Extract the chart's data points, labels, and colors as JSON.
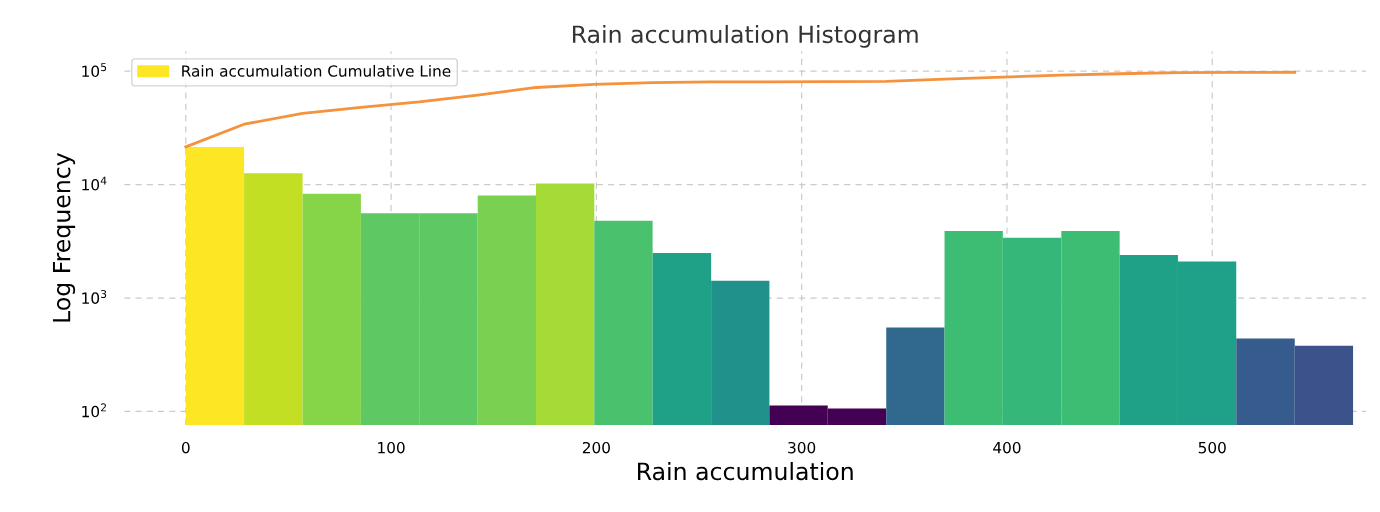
{
  "chart_data": {
    "type": "histogram",
    "title": "Rain accumulation Histogram",
    "xlabel": "Rain accumulation",
    "ylabel": "Log Frequency",
    "bins": [
      0,
      28.4,
      56.9,
      85.3,
      113.7,
      142.2,
      170.6,
      199,
      227.4,
      255.9,
      284.3,
      312.7,
      341.2,
      369.6,
      398,
      426.5,
      454.9,
      483.3,
      511.7,
      540.2,
      568.6
    ],
    "series": [
      {
        "name": "Rain accumulation Cumulative Line",
        "values": [
          21500,
          12600,
          8300,
          5600,
          5600,
          8000,
          10200,
          4800,
          2500,
          1420,
          113,
          106,
          550,
          3900,
          3400,
          3900,
          2400,
          2100,
          440,
          380
        ],
        "colors": [
          "#fde725",
          "#c2df23",
          "#86d549",
          "#5ec962",
          "#5ec962",
          "#7ad151",
          "#a5db36",
          "#4ac16d",
          "#1fa187",
          "#21918c",
          "#440154",
          "#440154",
          "#31688e",
          "#3dbc74",
          "#35b779",
          "#3dbc74",
          "#1fa187",
          "#1fa088",
          "#365c8d",
          "#3b528b"
        ]
      },
      {
        "type": "line",
        "color": "#f5923e",
        "x": [
          0,
          28.4,
          56.9,
          85.3,
          113.7,
          142.2,
          170.6,
          199,
          227.4,
          255.9,
          284.3,
          312.7,
          341.2,
          369.6,
          398,
          426.5,
          454.9,
          483.3,
          511.7,
          540.2
        ],
        "values": [
          21500,
          34100,
          42400,
          48000,
          53600,
          61600,
          71800,
          76600,
          79100,
          80500,
          80600,
          80700,
          81300,
          85200,
          88600,
          92500,
          94900,
          97000,
          97400,
          97800
        ]
      }
    ],
    "log": "y",
    "xlim": [
      -30,
      575
    ],
    "ylim": [
      76,
      150000
    ],
    "xticks": [
      0,
      100,
      200,
      300,
      400,
      500
    ],
    "yticks": [
      {
        "value": 100,
        "label": "10$^{2}$"
      },
      {
        "value": 1000,
        "label": "10$^{3}$"
      },
      {
        "value": 10000,
        "label": "10$^{4}$"
      },
      {
        "value": 100000,
        "label": "10$^{5}$"
      }
    ],
    "grid": true,
    "legend": "top left"
  }
}
